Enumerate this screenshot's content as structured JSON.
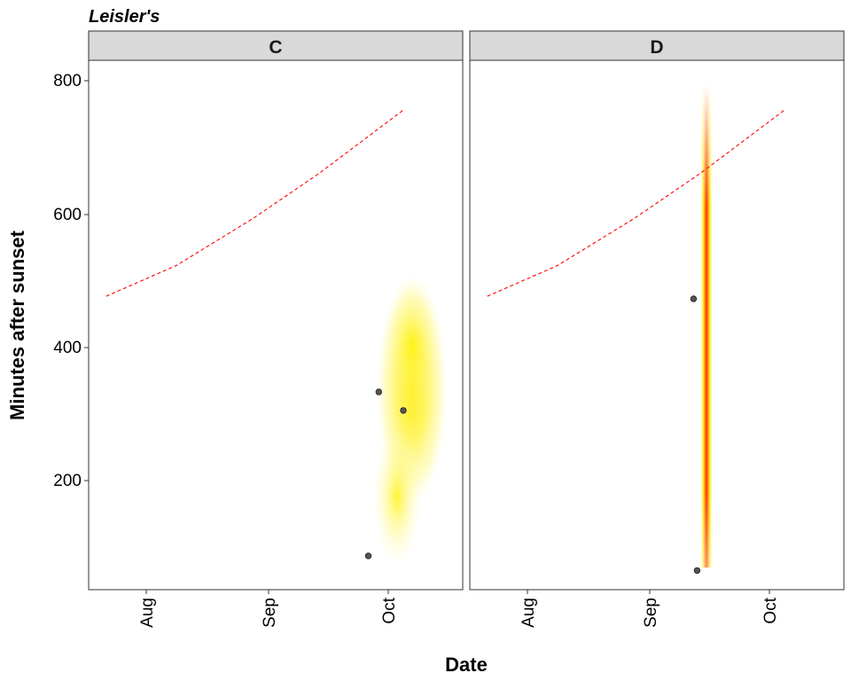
{
  "chart_data": {
    "type": "scatter",
    "title": "Leisler's",
    "xlabel": "Date",
    "ylabel": "Minutes after sunset",
    "x_ticks": [
      "Aug",
      "Sep",
      "Oct"
    ],
    "y_ticks": [
      200,
      400,
      600,
      800
    ],
    "ylim": [
      40,
      870
    ],
    "xlim": [
      "2021-07-16",
      "2021-10-31"
    ],
    "grid": false,
    "colors": {
      "density_low": "#ffff66",
      "density_high": "#ff2200",
      "sunrise_line": "#ff0000",
      "points": "#555555"
    },
    "panels": [
      {
        "name": "C",
        "points": [
          {
            "x": "2021-10-07",
            "y": 350
          },
          {
            "x": "2021-10-14",
            "y": 321
          },
          {
            "x": "2021-10-04",
            "y": 93
          }
        ],
        "sunrise_line": [
          {
            "x": "2021-07-21",
            "y": 500
          },
          {
            "x": "2021-08-10",
            "y": 548
          },
          {
            "x": "2021-09-01",
            "y": 622
          },
          {
            "x": "2021-09-20",
            "y": 693
          },
          {
            "x": "2021-10-14",
            "y": 792
          }
        ],
        "density": {
          "x_center": "2021-10-08",
          "y_center": 350,
          "spread": "wide",
          "intensity": "low"
        }
      },
      {
        "name": "D",
        "points": [
          {
            "x": "2021-09-18",
            "y": 496
          },
          {
            "x": "2021-09-19",
            "y": 70
          }
        ],
        "sunrise_line": [
          {
            "x": "2021-07-21",
            "y": 500
          },
          {
            "x": "2021-08-10",
            "y": 548
          },
          {
            "x": "2021-09-01",
            "y": 622
          },
          {
            "x": "2021-09-20",
            "y": 693
          },
          {
            "x": "2021-10-14",
            "y": 792
          }
        ],
        "density": {
          "x_center": "2021-09-18",
          "y_center": 450,
          "spread": "narrow",
          "intensity": "high"
        }
      }
    ]
  }
}
